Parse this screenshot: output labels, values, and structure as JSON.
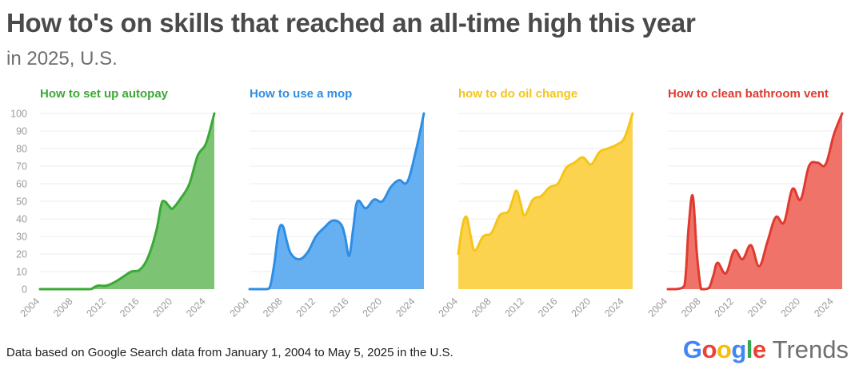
{
  "title": "How to's on skills that reached an all-time high this year",
  "subtitle": "in 2025, U.S.",
  "footnote": "Data based on Google Search data from January 1, 2004 to May 5, 2025 in the U.S.",
  "brand": {
    "google_letters": [
      {
        "ch": "G",
        "color": "#4285F4"
      },
      {
        "ch": "o",
        "color": "#EA4335"
      },
      {
        "ch": "o",
        "color": "#FBBC05"
      },
      {
        "ch": "g",
        "color": "#4285F4"
      },
      {
        "ch": "l",
        "color": "#34A853"
      },
      {
        "ch": "e",
        "color": "#EA4335"
      }
    ],
    "trends_label": "Trends"
  },
  "chart_data": [
    {
      "type": "area",
      "title": "How to set up autopay",
      "color": "#3ba935",
      "fill": "#7cc474",
      "ylim": [
        0,
        100
      ],
      "yticks": [
        0,
        10,
        20,
        30,
        40,
        50,
        60,
        70,
        80,
        90,
        100
      ],
      "xlim": [
        2004,
        2025
      ],
      "xticks": [
        "2004",
        "2008",
        "2012",
        "2016",
        "2020",
        "2024"
      ],
      "grid": true,
      "x": [
        2004,
        2006,
        2008,
        2010,
        2010.5,
        2011,
        2012,
        2013,
        2014,
        2015,
        2016,
        2017,
        2018,
        2018.6,
        2019,
        2019.6,
        2020,
        2021,
        2022,
        2023,
        2024,
        2025
      ],
      "y": [
        0,
        0,
        0,
        0,
        1,
        2,
        2,
        4,
        7,
        10,
        11,
        18,
        33,
        48,
        50,
        47,
        46,
        52,
        60,
        76,
        83,
        100
      ]
    },
    {
      "type": "area",
      "title": "How to use a mop",
      "color": "#2f8ee4",
      "fill": "#66b0f2",
      "ylim": [
        0,
        100
      ],
      "yticks": [
        0,
        10,
        20,
        30,
        40,
        50,
        60,
        70,
        80,
        90,
        100
      ],
      "xlim": [
        2004,
        2025
      ],
      "xticks": [
        "2004",
        "2008",
        "2012",
        "2016",
        "2020",
        "2024"
      ],
      "grid": true,
      "x": [
        2004,
        2006,
        2006.5,
        2007,
        2007.5,
        2008,
        2008.5,
        2009,
        2010,
        2011,
        2012,
        2013,
        2014,
        2015,
        2015.5,
        2016,
        2016.5,
        2017,
        2018,
        2019,
        2020,
        2021,
        2022,
        2023,
        2024,
        2025
      ],
      "y": [
        0,
        0,
        2,
        15,
        33,
        36,
        27,
        20,
        17,
        21,
        30,
        35,
        39,
        37,
        30,
        19,
        35,
        50,
        46,
        51,
        50,
        58,
        62,
        61,
        78,
        100
      ]
    },
    {
      "type": "area",
      "title": "how to do oil change",
      "color": "#f5c518",
      "fill": "#fcd34f",
      "ylim": [
        0,
        100
      ],
      "yticks": [
        0,
        10,
        20,
        30,
        40,
        50,
        60,
        70,
        80,
        90,
        100
      ],
      "xlim": [
        2004,
        2025
      ],
      "xticks": [
        "2004",
        "2008",
        "2012",
        "2016",
        "2020",
        "2024"
      ],
      "grid": true,
      "x": [
        2004,
        2004.5,
        2005,
        2005.5,
        2006,
        2007,
        2008,
        2009,
        2010,
        2010.5,
        2011,
        2011.5,
        2012,
        2013,
        2014,
        2015,
        2016,
        2017,
        2018,
        2019,
        2020,
        2021,
        2022,
        2023,
        2024,
        2025
      ],
      "y": [
        20,
        36,
        41,
        30,
        22,
        30,
        32,
        42,
        44,
        50,
        56,
        49,
        42,
        51,
        53,
        58,
        60,
        69,
        72,
        75,
        71,
        78,
        80,
        82,
        86,
        100
      ]
    },
    {
      "type": "area",
      "title": "How to clean bathroom vent",
      "color": "#e03a2f",
      "fill": "#f0736a",
      "ylim": [
        0,
        100
      ],
      "yticks": [
        0,
        10,
        20,
        30,
        40,
        50,
        60,
        70,
        80,
        90,
        100
      ],
      "xlim": [
        2004,
        2025
      ],
      "xticks": [
        "2004",
        "2008",
        "2012",
        "2016",
        "2020",
        "2024"
      ],
      "grid": true,
      "x": [
        2004,
        2005,
        2006,
        2006.5,
        2007,
        2007.5,
        2008,
        2008.5,
        2009,
        2009.5,
        2010,
        2011,
        2012,
        2013,
        2014,
        2015,
        2016,
        2017,
        2018,
        2019,
        2020,
        2021,
        2022,
        2023,
        2024,
        2025
      ],
      "y": [
        0,
        0,
        2,
        35,
        53,
        20,
        0,
        0,
        1,
        8,
        15,
        9,
        22,
        17,
        25,
        13,
        27,
        41,
        38,
        57,
        51,
        70,
        72,
        71,
        88,
        100
      ]
    }
  ]
}
